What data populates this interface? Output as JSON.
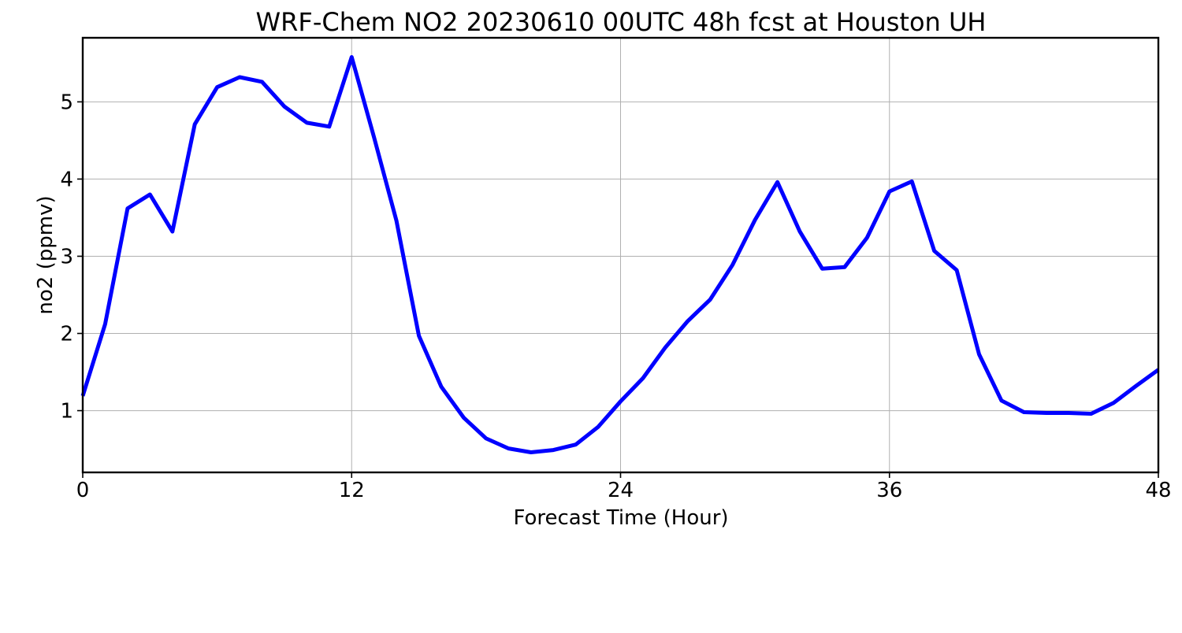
{
  "chart_data": {
    "type": "line",
    "title": "WRF-Chem NO2  20230610 00UTC 48h fcst at Houston UH",
    "xlabel": "Forecast Time (Hour)",
    "ylabel": "no2  (ppmv)",
    "xlim": [
      0,
      48
    ],
    "ylim": [
      0.2,
      5.83
    ],
    "xticks": [
      0,
      12,
      24,
      36,
      48
    ],
    "xtick_labels": [
      "0",
      "12",
      "24",
      "36",
      "48"
    ],
    "yticks": [
      1,
      2,
      3,
      4,
      5
    ],
    "ytick_labels": [
      "1",
      "2",
      "3",
      "4",
      "5"
    ],
    "grid": true,
    "legend": "none",
    "series": [
      {
        "color": "#0000ff",
        "x": [
          0,
          1,
          2,
          3,
          4,
          5,
          6,
          7,
          8,
          9,
          10,
          11,
          12,
          13,
          14,
          15,
          16,
          17,
          18,
          19,
          20,
          21,
          22,
          23,
          24,
          25,
          26,
          27,
          28,
          29,
          30,
          31,
          32,
          33,
          34,
          35,
          36,
          37,
          38,
          39,
          40,
          41,
          42,
          43,
          44,
          45,
          46,
          47,
          48
        ],
        "values": [
          1.19,
          2.12,
          3.62,
          3.8,
          3.32,
          4.71,
          5.19,
          5.32,
          5.26,
          4.94,
          4.73,
          4.68,
          5.58,
          4.54,
          3.46,
          1.97,
          1.31,
          0.91,
          0.64,
          0.51,
          0.46,
          0.49,
          0.56,
          0.79,
          1.12,
          1.42,
          1.82,
          2.16,
          2.44,
          2.89,
          3.47,
          3.96,
          3.32,
          2.84,
          2.86,
          3.24,
          3.84,
          3.97,
          3.07,
          2.82,
          1.73,
          1.13,
          0.98,
          0.97,
          0.97,
          0.96,
          1.1,
          1.32,
          1.53
        ]
      }
    ]
  }
}
